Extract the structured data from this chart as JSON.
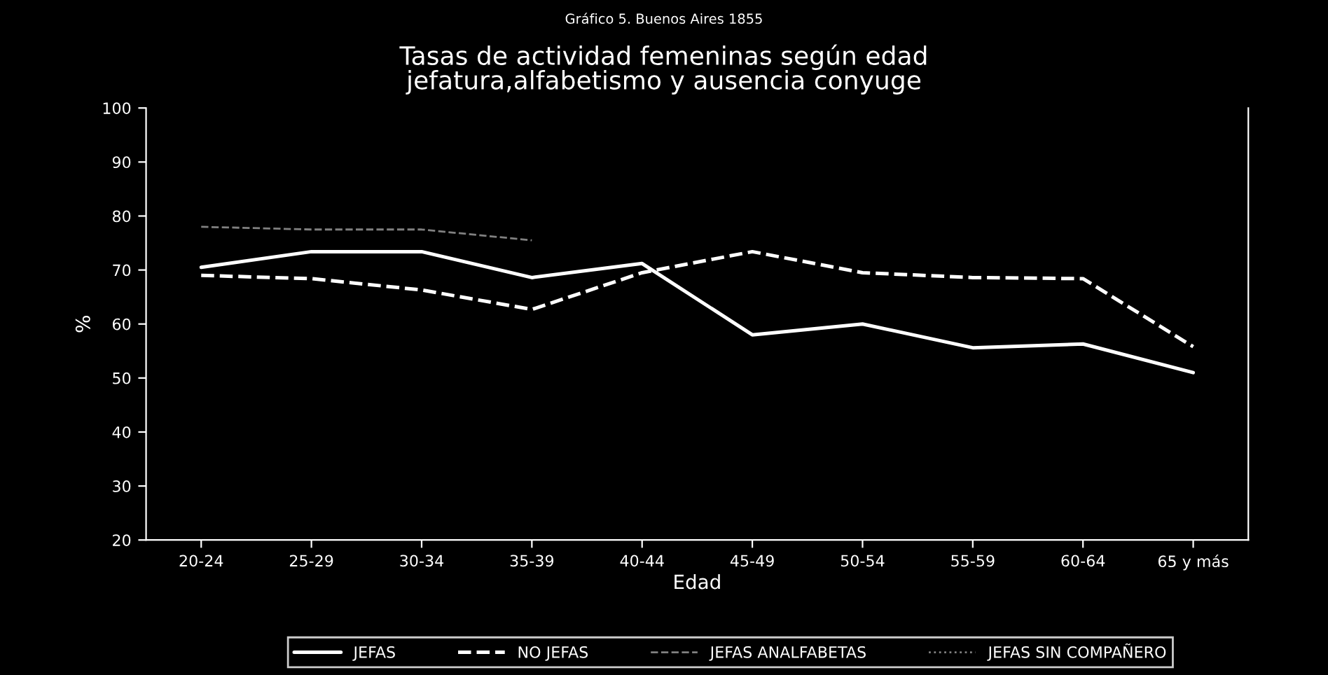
{
  "chart_data": {
    "type": "line",
    "subtitle": "Gráfico 5. Buenos Aires 1855",
    "title": "Tasas de actividad femeninas según edad\njefatura,alfabetismo y ausencia conyuge",
    "xlabel": "Edad",
    "ylabel": "%",
    "categories": [
      "20-24",
      "25-29",
      "30-34",
      "35-39",
      "40-44",
      "45-49",
      "50-54",
      "55-59",
      "60-64",
      "65 y más"
    ],
    "series": [
      {
        "name": "JEFAS",
        "color": "#ffffff",
        "line_style": "solid",
        "values": [
          70.5,
          73.4,
          73.4,
          68.6,
          71.2,
          58,
          60,
          55.6,
          56.3,
          51
        ]
      },
      {
        "name": "NO JEFAS",
        "color": "#ffffff",
        "line_style": "dashed",
        "values": [
          69,
          68.4,
          66.3,
          62.7,
          69.5,
          73.4,
          69.5,
          68.6,
          68.4,
          55.8
        ]
      },
      {
        "name": "JEFAS ANALFABETAS",
        "color": "#808080",
        "line_style": "dashed",
        "values": [
          78,
          77.5,
          77.5,
          75.5,
          null,
          null,
          null,
          null,
          null,
          null
        ]
      },
      {
        "name": "JEFAS SIN COMPAÑERO",
        "color": "#808080",
        "line_style": "dotted",
        "values": [
          null,
          null,
          null,
          null,
          null,
          null,
          null,
          null,
          null,
          null
        ]
      }
    ],
    "ylim": [
      20,
      100
    ],
    "yticks": [
      20,
      30,
      40,
      50,
      60,
      70,
      80,
      90,
      100
    ],
    "grid": false,
    "legend": "bottom",
    "marker": "none"
  }
}
